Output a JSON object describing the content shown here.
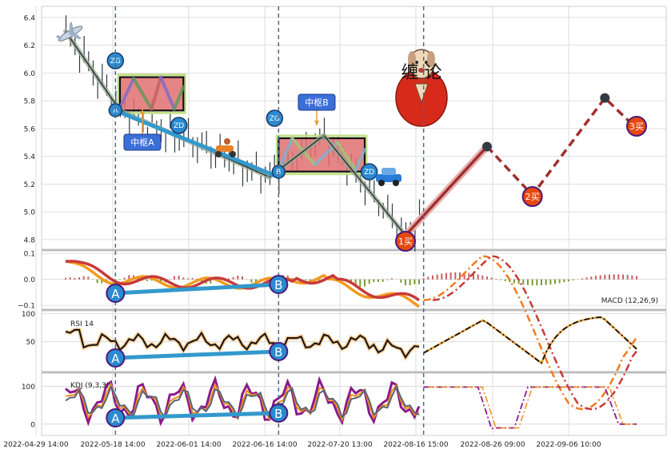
{
  "chart_data": [
    {
      "panel": "price",
      "type": "line",
      "y_ticks": [
        "6.4",
        "6.2",
        "6.0",
        "5.8",
        "5.6",
        "5.4",
        "5.2",
        "5.0",
        "4.8"
      ],
      "ylim": [
        4.73,
        6.48
      ],
      "annotations": {
        "zg": "ZG",
        "zd": "ZD",
        "a": "A",
        "b": "B",
        "center_a": "中枢A",
        "center_b": "中枢B",
        "buy1": "1买",
        "buy2": "2买",
        "buy3": "3买",
        "logo": "缠 论"
      },
      "stroke_points": [
        {
          "x": 0,
          "y": 6.3
        },
        {
          "x": 12,
          "y": 5.73
        },
        {
          "x": 45,
          "y": 5.25
        },
        {
          "x": 57,
          "y": 5.55
        },
        {
          "x": 75,
          "y": 4.83
        },
        {
          "x": 93,
          "y": 5.47
        },
        {
          "x": 103,
          "y": 5.12
        },
        {
          "x": 119,
          "y": 5.82
        },
        {
          "x": 126,
          "y": 5.6
        }
      ],
      "colors": {
        "fill": "#e07070",
        "stroke": "#3399cc",
        "forecast": "#a03030"
      }
    },
    {
      "panel": "macd",
      "type": "line",
      "label": "MACD (12,26,9)",
      "y_ticks": [
        "0.1",
        "0.0",
        "−0.1"
      ],
      "ylim": [
        -0.115,
        0.11
      ]
    },
    {
      "panel": "rsi",
      "type": "line",
      "label": "RSI 14",
      "y_ticks": [
        "100",
        "50"
      ],
      "ylim": [
        -3,
        105
      ]
    },
    {
      "panel": "kdj",
      "type": "line",
      "label": "KDJ (9,3,3)",
      "y_ticks": [
        "100",
        "0"
      ],
      "ylim": [
        -30,
        135
      ]
    }
  ],
  "x_ticks": [
    "2022-04-29 14:00",
    "2022-05-18 14:00",
    "2022-06-01 14:00",
    "2022-06-16 14:00",
    "2022-07-20 13:00",
    "2022-08-16 15:00",
    "2022-08-26 09:00",
    "2022-09-06 10:00"
  ]
}
